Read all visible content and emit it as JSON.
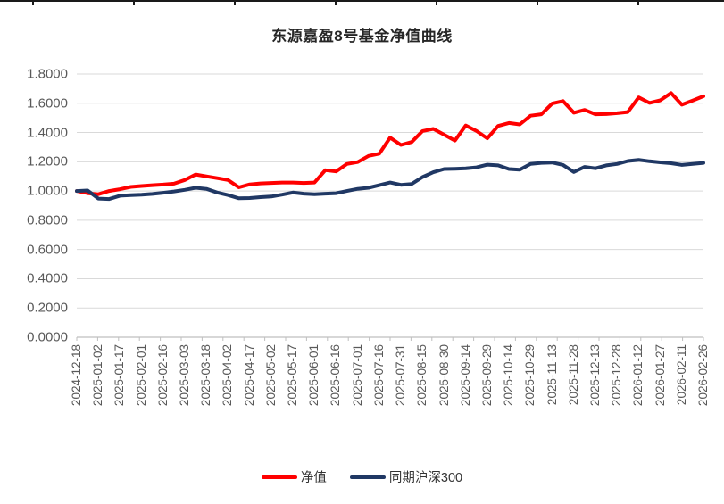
{
  "title": "东源嘉盈8号基金净值曲线",
  "colors": {
    "netvalue_line": "#FF0000",
    "benchmark_line": "#203864",
    "gridline": "#D9D9D9",
    "axis_line": "#BFBFBF",
    "tick_label": "#595959",
    "title_text": "#262626",
    "top_ruler": "#1A1A1A"
  },
  "chart_data": {
    "type": "line",
    "title": "东源嘉盈8号基金净值曲线",
    "xlabel": "",
    "ylabel": "",
    "ylim": [
      0.0,
      1.8
    ],
    "ytick_step": 0.2,
    "ytick_decimals": 4,
    "grid": true,
    "legend_position": "bottom",
    "x_labels": [
      "2024-12-18",
      "2025-01-02",
      "2025-01-17",
      "2025-02-01",
      "2025-02-16",
      "2025-03-03",
      "2025-03-18",
      "2025-04-02",
      "2025-04-17",
      "2025-05-02",
      "2025-05-17",
      "2025-06-01",
      "2025-06-16",
      "2025-07-01",
      "2025-07-16",
      "2025-07-31",
      "2025-08-15",
      "2025-08-30",
      "2025-09-14",
      "2025-09-29",
      "2025-10-14",
      "2025-10-29",
      "2025-11-13",
      "2025-11-28",
      "2025-12-13",
      "2025-12-28",
      "2026-01-12",
      "2026-01-27",
      "2026-02-11",
      "2026-02-26"
    ],
    "points_per_label": 2,
    "series": [
      {
        "name": "净值",
        "color": "#FF0000",
        "values": [
          1.0,
          0.985,
          0.978,
          1.0,
          1.012,
          1.028,
          1.034,
          1.04,
          1.044,
          1.05,
          1.075,
          1.113,
          1.1,
          1.088,
          1.075,
          1.025,
          1.045,
          1.052,
          1.055,
          1.058,
          1.058,
          1.055,
          1.058,
          1.142,
          1.134,
          1.185,
          1.198,
          1.24,
          1.255,
          1.365,
          1.315,
          1.335,
          1.41,
          1.425,
          1.385,
          1.345,
          1.448,
          1.41,
          1.36,
          1.445,
          1.465,
          1.455,
          1.515,
          1.525,
          1.598,
          1.615,
          1.535,
          1.555,
          1.525,
          1.526,
          1.532,
          1.54,
          1.64,
          1.602,
          1.62,
          1.67,
          1.59,
          1.618,
          1.648
        ]
      },
      {
        "name": "同期沪深300",
        "color": "#203864",
        "values": [
          1.0,
          1.004,
          0.948,
          0.945,
          0.968,
          0.972,
          0.975,
          0.98,
          0.988,
          0.997,
          1.008,
          1.022,
          1.015,
          0.99,
          0.972,
          0.95,
          0.952,
          0.958,
          0.962,
          0.975,
          0.99,
          0.982,
          0.978,
          0.982,
          0.985,
          1.0,
          1.015,
          1.022,
          1.04,
          1.058,
          1.042,
          1.048,
          1.095,
          1.128,
          1.15,
          1.152,
          1.155,
          1.162,
          1.18,
          1.175,
          1.15,
          1.145,
          1.185,
          1.192,
          1.195,
          1.178,
          1.13,
          1.165,
          1.155,
          1.175,
          1.185,
          1.205,
          1.213,
          1.203,
          1.196,
          1.19,
          1.178,
          1.185,
          1.192
        ]
      }
    ]
  },
  "legend": {
    "netvalue_label": "净值",
    "benchmark_label": "同期沪深300"
  }
}
